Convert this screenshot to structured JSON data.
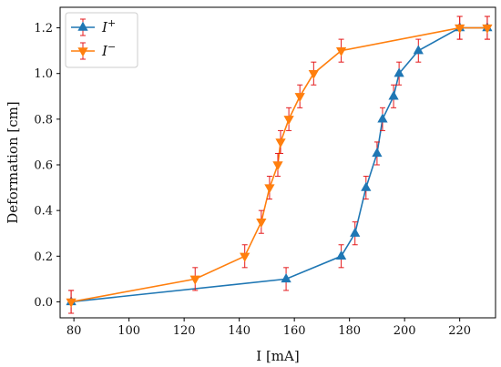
{
  "chart_data": {
    "type": "line",
    "title": "",
    "xlabel": "I [mA]",
    "ylabel": "Deformation [cm]",
    "xlim": [
      75,
      233
    ],
    "ylim": [
      -0.07,
      1.29
    ],
    "xticks": [
      80,
      100,
      120,
      140,
      160,
      180,
      200,
      220
    ],
    "yticks": [
      0.0,
      0.2,
      0.4,
      0.6,
      0.8,
      1.0,
      1.2
    ],
    "grid": false,
    "legend_position": "top-left",
    "error_bar": 0.05,
    "error_bar_color": "#e41a1c",
    "series": [
      {
        "name": "I+",
        "legend_base": "I",
        "legend_sup": "+",
        "marker": "triangle-up",
        "color": "#1f77b4",
        "points": [
          [
            79,
            0.0
          ],
          [
            157,
            0.1
          ],
          [
            177,
            0.2
          ],
          [
            182,
            0.3
          ],
          [
            186,
            0.5
          ],
          [
            190,
            0.65
          ],
          [
            192,
            0.8
          ],
          [
            196,
            0.9
          ],
          [
            198,
            1.0
          ],
          [
            205,
            1.1
          ],
          [
            220,
            1.2
          ],
          [
            230,
            1.2
          ]
        ]
      },
      {
        "name": "I−",
        "legend_base": "I",
        "legend_sup": "−",
        "marker": "triangle-down",
        "color": "#ff7f0e",
        "points": [
          [
            79,
            0.0
          ],
          [
            124,
            0.1
          ],
          [
            142,
            0.2
          ],
          [
            148,
            0.35
          ],
          [
            151,
            0.5
          ],
          [
            154,
            0.6
          ],
          [
            155,
            0.7
          ],
          [
            158,
            0.8
          ],
          [
            162,
            0.9
          ],
          [
            167,
            1.0
          ],
          [
            177,
            1.1
          ],
          [
            220,
            1.2
          ],
          [
            230,
            1.2
          ]
        ]
      }
    ]
  }
}
